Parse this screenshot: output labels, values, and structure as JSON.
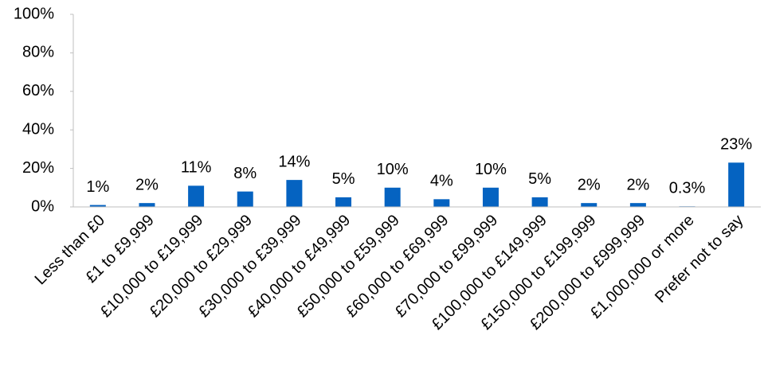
{
  "chart_data": {
    "type": "bar",
    "categories": [
      "Less than £0",
      "£1 to £9,999",
      "£10,000 to £19,999",
      "£20,000 to £29,999",
      "£30,000 to £39,999",
      "£40,000 to £49,999",
      "£50,000 to £59,999",
      "£60,000 to £69,999",
      "£70,000 to £99,999",
      "£100,000 to £149,999",
      "£150,000 to £199,999",
      "£200,000 to £999,999",
      "£1,000,000 or more",
      "Prefer not to say"
    ],
    "values": [
      1,
      2,
      11,
      8,
      14,
      5,
      10,
      4,
      10,
      5,
      2,
      2,
      0.3,
      23
    ],
    "value_labels": [
      "1%",
      "2%",
      "11%",
      "8%",
      "14%",
      "5%",
      "10%",
      "4%",
      "10%",
      "5%",
      "2%",
      "2%",
      "0.3%",
      "23%"
    ],
    "color": "#0563c1",
    "ylim": [
      0,
      100
    ],
    "yticks": [
      {
        "value": 0,
        "label": "0%"
      },
      {
        "value": 20,
        "label": "20%"
      },
      {
        "value": 40,
        "label": "40%"
      },
      {
        "value": 60,
        "label": "60%"
      },
      {
        "value": 80,
        "label": "80%"
      },
      {
        "value": 100,
        "label": "100%"
      }
    ],
    "grid": false
  }
}
